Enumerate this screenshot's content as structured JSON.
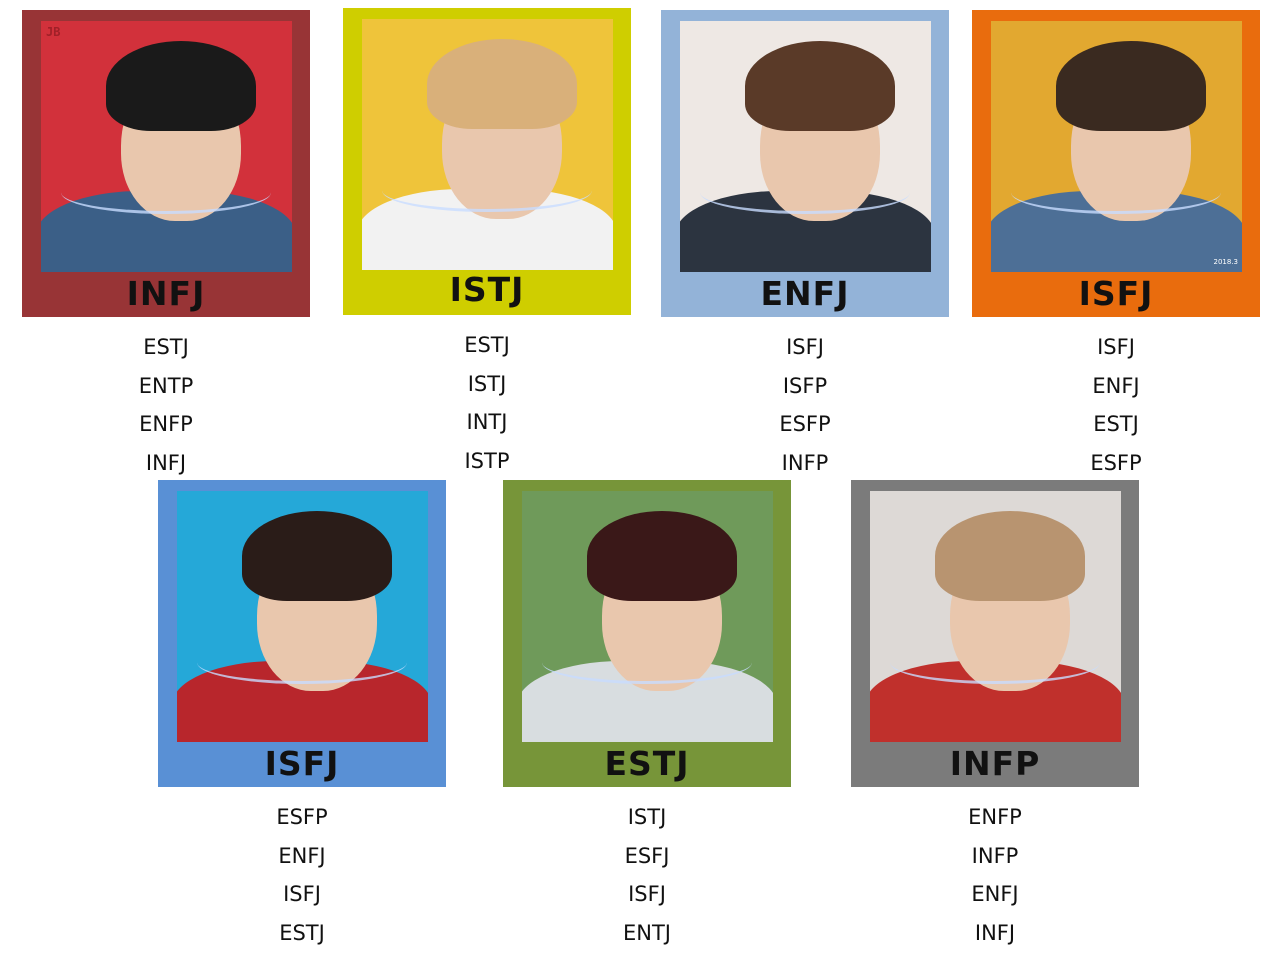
{
  "cards": [
    {
      "type": "INFJ",
      "frame_color": "#983436",
      "photo_bg": "#d2313b",
      "hair": "#1a1a1a",
      "clothes": "#3b5f87",
      "photo_tag": "JB",
      "matches": [
        "ESTJ",
        "ENTP",
        "ENFP",
        "INFJ"
      ]
    },
    {
      "type": "ISTJ",
      "frame_color": "#cfce00",
      "photo_bg": "#efc43a",
      "hair": "#d9b07a",
      "clothes": "#f2f2f2",
      "matches": [
        "ESTJ",
        "ISTJ",
        "INTJ",
        "ISTP"
      ]
    },
    {
      "type": "ENFJ",
      "frame_color": "#93b3d8",
      "photo_bg": "#eee8e4",
      "hair": "#5a3a28",
      "clothes": "#2c3440",
      "matches": [
        "ISFJ",
        "ISFP",
        "ESFP",
        "INFP"
      ]
    },
    {
      "type": "ISFJ",
      "frame_color": "#e96c0d",
      "photo_bg": "#e2a830",
      "hair": "#3a2a20",
      "clothes": "#4d6f96",
      "photo_date": "2018.3",
      "matches": [
        "ISFJ",
        "ENFJ",
        "ESTJ",
        "ESFP"
      ]
    },
    {
      "type": "ISFJ",
      "frame_color": "#5990d5",
      "photo_bg": "#25a8d8",
      "hair": "#2a1c18",
      "clothes": "#b8262c",
      "matches": [
        "ESFP",
        "ENFJ",
        "ISFJ",
        "ESTJ"
      ]
    },
    {
      "type": "ESTJ",
      "frame_color": "#779539",
      "photo_bg": "#6f9a5a",
      "hair": "#3a1818",
      "clothes": "#d8dde0",
      "matches": [
        "ISTJ",
        "ESFJ",
        "ISFJ",
        "ENTJ"
      ]
    },
    {
      "type": "INFP",
      "frame_color": "#7b7b7b",
      "photo_bg": "#ddd9d6",
      "hair": "#b89470",
      "clothes": "#c0302c",
      "matches": [
        "ENFP",
        "INFP",
        "ENFJ",
        "INFJ"
      ]
    }
  ]
}
